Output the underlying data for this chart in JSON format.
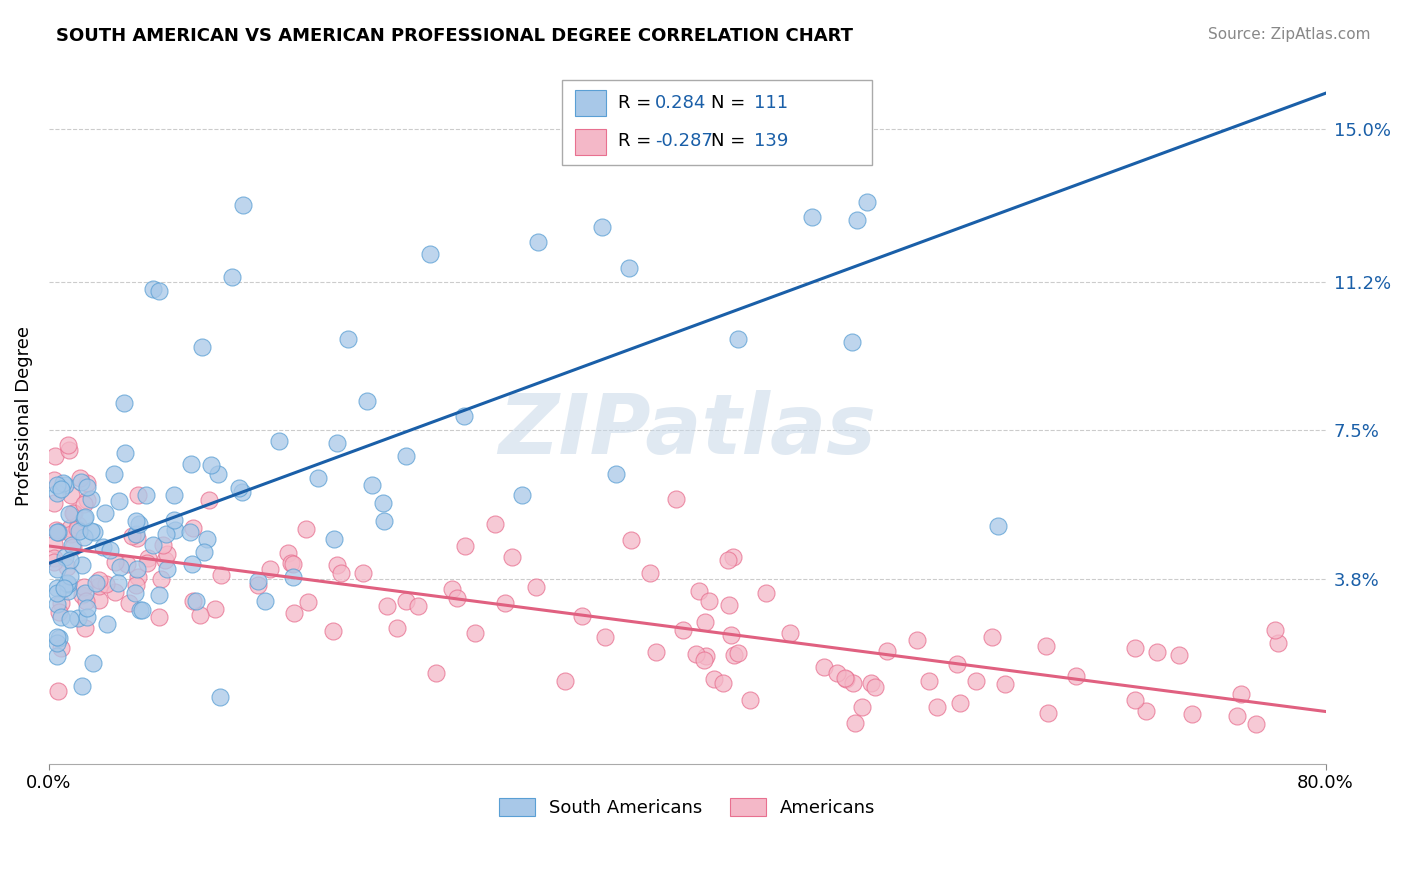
{
  "title": "SOUTH AMERICAN VS AMERICAN PROFESSIONAL DEGREE CORRELATION CHART",
  "source": "Source: ZipAtlas.com",
  "ylabel": "Professional Degree",
  "yticks": [
    0.0,
    0.038,
    0.075,
    0.112,
    0.15
  ],
  "ytick_labels": [
    "",
    "3.8%",
    "7.5%",
    "11.2%",
    "15.0%"
  ],
  "xlim": [
    0.0,
    0.8
  ],
  "ylim": [
    -0.008,
    0.165
  ],
  "blue_R": 0.284,
  "blue_N": 111,
  "pink_R": -0.287,
  "pink_N": 139,
  "blue_color": "#a8c8e8",
  "pink_color": "#f4b8c8",
  "blue_edge": "#5a9fd4",
  "pink_edge": "#e87090",
  "trend_blue": "#1a5fa8",
  "trend_pink": "#e06080",
  "grid_color": "#cccccc",
  "watermark": "ZIPatlas",
  "legend_R_color": "#1a5fa8",
  "legend_N_color": "#1a5fa8"
}
